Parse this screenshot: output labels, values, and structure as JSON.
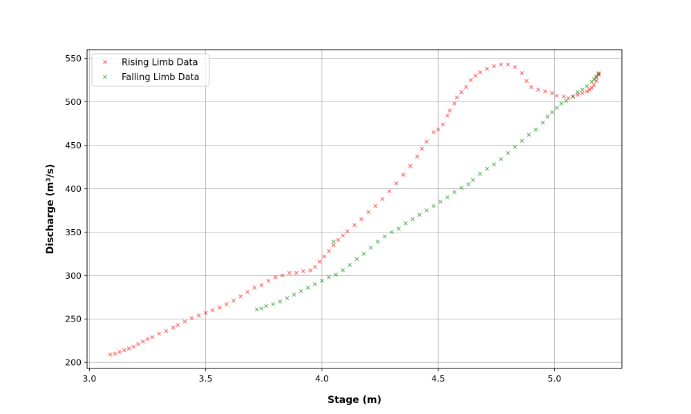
{
  "chart_data": {
    "type": "scatter",
    "title": "",
    "xlabel": "Stage (m)",
    "ylabel": "Discharge (m³/s)",
    "xlim": [
      2.99,
      5.29
    ],
    "ylim": [
      193,
      560
    ],
    "xticks": [
      3.0,
      3.5,
      4.0,
      4.5,
      5.0
    ],
    "xtick_labels": [
      "3.0",
      "3.5",
      "4.0",
      "4.5",
      "5.0"
    ],
    "yticks": [
      200,
      250,
      300,
      350,
      400,
      450,
      500,
      550
    ],
    "ytick_labels": [
      "200",
      "250",
      "300",
      "350",
      "400",
      "450",
      "500",
      "550"
    ],
    "grid": true,
    "legend_position": "top-left",
    "marker": "x",
    "series": [
      {
        "name": "Rising Limb Data",
        "color": "#ff0000",
        "points": [
          [
            3.09,
            209
          ],
          [
            3.11,
            210
          ],
          [
            3.13,
            212
          ],
          [
            3.15,
            214
          ],
          [
            3.17,
            216
          ],
          [
            3.19,
            218
          ],
          [
            3.21,
            221
          ],
          [
            3.23,
            224
          ],
          [
            3.25,
            227
          ],
          [
            3.27,
            229
          ],
          [
            3.3,
            233
          ],
          [
            3.33,
            236
          ],
          [
            3.36,
            240
          ],
          [
            3.38,
            243
          ],
          [
            3.41,
            247
          ],
          [
            3.44,
            251
          ],
          [
            3.47,
            254
          ],
          [
            3.5,
            257
          ],
          [
            3.53,
            260
          ],
          [
            3.56,
            263
          ],
          [
            3.59,
            267
          ],
          [
            3.62,
            271
          ],
          [
            3.65,
            276
          ],
          [
            3.68,
            281
          ],
          [
            3.71,
            286
          ],
          [
            3.74,
            289
          ],
          [
            3.77,
            294
          ],
          [
            3.8,
            298
          ],
          [
            3.83,
            300
          ],
          [
            3.86,
            303
          ],
          [
            3.89,
            303
          ],
          [
            3.92,
            305
          ],
          [
            3.95,
            306
          ],
          [
            3.97,
            310
          ],
          [
            3.99,
            316
          ],
          [
            4.01,
            322
          ],
          [
            4.03,
            328
          ],
          [
            4.05,
            335
          ],
          [
            4.07,
            341
          ],
          [
            4.09,
            346
          ],
          [
            4.11,
            351
          ],
          [
            4.14,
            358
          ],
          [
            4.17,
            365
          ],
          [
            4.2,
            373
          ],
          [
            4.23,
            380
          ],
          [
            4.26,
            388
          ],
          [
            4.29,
            397
          ],
          [
            4.32,
            406
          ],
          [
            4.35,
            416
          ],
          [
            4.38,
            426
          ],
          [
            4.41,
            437
          ],
          [
            4.43,
            446
          ],
          [
            4.45,
            454
          ],
          [
            4.48,
            465
          ],
          [
            4.5,
            468
          ],
          [
            4.52,
            474
          ],
          [
            4.54,
            484
          ],
          [
            4.55,
            490
          ],
          [
            4.57,
            498
          ],
          [
            4.58,
            505
          ],
          [
            4.6,
            511
          ],
          [
            4.62,
            517
          ],
          [
            4.64,
            525
          ],
          [
            4.66,
            530
          ],
          [
            4.68,
            534
          ],
          [
            4.71,
            538
          ],
          [
            4.74,
            541
          ],
          [
            4.77,
            543
          ],
          [
            4.8,
            543
          ],
          [
            4.83,
            540
          ],
          [
            4.86,
            533
          ],
          [
            4.88,
            524
          ],
          [
            4.9,
            517
          ],
          [
            4.93,
            514
          ],
          [
            4.96,
            512
          ],
          [
            4.99,
            510
          ],
          [
            5.01,
            507
          ],
          [
            5.04,
            506
          ],
          [
            5.06,
            504
          ],
          [
            5.08,
            506
          ],
          [
            5.1,
            508
          ],
          [
            5.12,
            510
          ],
          [
            5.14,
            512
          ],
          [
            5.15,
            514
          ],
          [
            5.16,
            516
          ],
          [
            5.17,
            519
          ],
          [
            5.18,
            524
          ],
          [
            5.18,
            528
          ],
          [
            5.19,
            531
          ],
          [
            5.19,
            533
          ]
        ]
      },
      {
        "name": "Falling Limb Data",
        "color": "#008000",
        "points": [
          [
            3.72,
            261
          ],
          [
            3.74,
            262
          ],
          [
            3.76,
            265
          ],
          [
            3.79,
            267
          ],
          [
            3.82,
            270
          ],
          [
            3.85,
            274
          ],
          [
            3.88,
            278
          ],
          [
            3.91,
            282
          ],
          [
            3.94,
            286
          ],
          [
            3.97,
            290
          ],
          [
            4.0,
            294
          ],
          [
            4.03,
            298
          ],
          [
            4.05,
            339
          ],
          [
            4.06,
            301
          ],
          [
            4.09,
            306
          ],
          [
            4.12,
            312
          ],
          [
            4.15,
            319
          ],
          [
            4.18,
            325
          ],
          [
            4.21,
            332
          ],
          [
            4.24,
            339
          ],
          [
            4.27,
            345
          ],
          [
            4.3,
            350
          ],
          [
            4.33,
            354
          ],
          [
            4.36,
            360
          ],
          [
            4.39,
            365
          ],
          [
            4.42,
            370
          ],
          [
            4.45,
            375
          ],
          [
            4.48,
            380
          ],
          [
            4.51,
            385
          ],
          [
            4.54,
            390
          ],
          [
            4.57,
            396
          ],
          [
            4.6,
            401
          ],
          [
            4.63,
            405
          ],
          [
            4.65,
            410
          ],
          [
            4.68,
            417
          ],
          [
            4.71,
            423
          ],
          [
            4.74,
            428
          ],
          [
            4.77,
            434
          ],
          [
            4.8,
            441
          ],
          [
            4.83,
            448
          ],
          [
            4.86,
            455
          ],
          [
            4.89,
            462
          ],
          [
            4.92,
            468
          ],
          [
            4.95,
            476
          ],
          [
            4.97,
            483
          ],
          [
            4.99,
            488
          ],
          [
            5.01,
            493
          ],
          [
            5.03,
            498
          ],
          [
            5.05,
            501
          ],
          [
            5.08,
            506
          ],
          [
            5.1,
            511
          ],
          [
            5.12,
            514
          ],
          [
            5.14,
            518
          ],
          [
            5.16,
            523
          ],
          [
            5.17,
            526
          ],
          [
            5.18,
            529
          ],
          [
            5.19,
            532
          ]
        ]
      }
    ]
  }
}
